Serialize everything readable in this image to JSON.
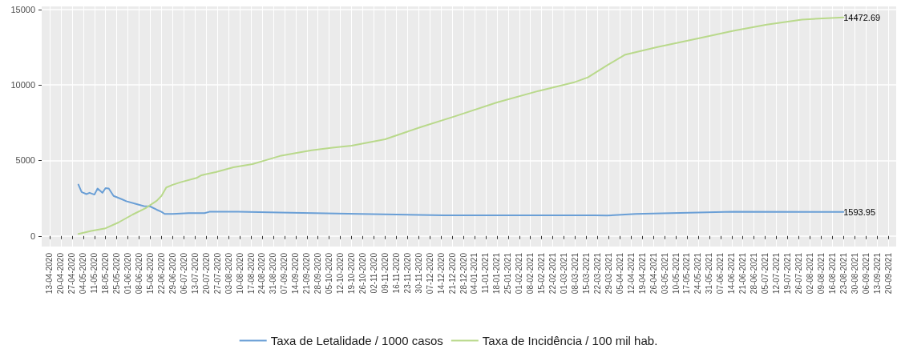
{
  "chart_data": {
    "type": "line",
    "legend": "bottom",
    "grid": true,
    "marker": "none",
    "line_style": "solid",
    "xlim": [
      "2020-04-08",
      "2021-09-25"
    ],
    "xticks": [
      {
        "value": "2020-04-13",
        "label": "13-04-2020"
      },
      {
        "value": "2020-04-20",
        "label": "20-04-2020"
      },
      {
        "value": "2020-04-27",
        "label": "27-04-2020"
      },
      {
        "value": "2020-05-04",
        "label": "04-05-2020"
      },
      {
        "value": "2020-05-11",
        "label": "11-05-2020"
      },
      {
        "value": "2020-05-18",
        "label": "18-05-2020"
      },
      {
        "value": "2020-05-25",
        "label": "25-05-2020"
      },
      {
        "value": "2020-06-01",
        "label": "01-06-2020"
      },
      {
        "value": "2020-06-08",
        "label": "08-06-2020"
      },
      {
        "value": "2020-06-15",
        "label": "15-06-2020"
      },
      {
        "value": "2020-06-22",
        "label": "22-06-2020"
      },
      {
        "value": "2020-06-29",
        "label": "29-06-2020"
      },
      {
        "value": "2020-07-06",
        "label": "06-07-2020"
      },
      {
        "value": "2020-07-13",
        "label": "13-07-2020"
      },
      {
        "value": "2020-07-20",
        "label": "20-07-2020"
      },
      {
        "value": "2020-07-27",
        "label": "27-07-2020"
      },
      {
        "value": "2020-08-03",
        "label": "03-08-2020"
      },
      {
        "value": "2020-08-10",
        "label": "10-08-2020"
      },
      {
        "value": "2020-08-17",
        "label": "17-08-2020"
      },
      {
        "value": "2020-08-24",
        "label": "24-08-2020"
      },
      {
        "value": "2020-08-31",
        "label": "31-08-2020"
      },
      {
        "value": "2020-09-07",
        "label": "07-09-2020"
      },
      {
        "value": "2020-09-14",
        "label": "14-09-2020"
      },
      {
        "value": "2020-09-21",
        "label": "21-09-2020"
      },
      {
        "value": "2020-09-28",
        "label": "28-09-2020"
      },
      {
        "value": "2020-10-05",
        "label": "05-10-2020"
      },
      {
        "value": "2020-10-12",
        "label": "12-10-2020"
      },
      {
        "value": "2020-10-19",
        "label": "19-10-2020"
      },
      {
        "value": "2020-10-26",
        "label": "26-10-2020"
      },
      {
        "value": "2020-11-02",
        "label": "02-11-2020"
      },
      {
        "value": "2020-11-09",
        "label": "09-11-2020"
      },
      {
        "value": "2020-11-16",
        "label": "16-11-2020"
      },
      {
        "value": "2020-11-23",
        "label": "23-11-2020"
      },
      {
        "value": "2020-11-30",
        "label": "30-11-2020"
      },
      {
        "value": "2020-12-07",
        "label": "07-12-2020"
      },
      {
        "value": "2020-12-14",
        "label": "14-12-2020"
      },
      {
        "value": "2020-12-21",
        "label": "21-12-2020"
      },
      {
        "value": "2020-12-28",
        "label": "28-12-2020"
      },
      {
        "value": "2021-01-04",
        "label": "04-01-2021"
      },
      {
        "value": "2021-01-11",
        "label": "11-01-2021"
      },
      {
        "value": "2021-01-18",
        "label": "18-01-2021"
      },
      {
        "value": "2021-01-25",
        "label": "25-01-2021"
      },
      {
        "value": "2021-02-01",
        "label": "01-02-2021"
      },
      {
        "value": "2021-02-08",
        "label": "08-02-2021"
      },
      {
        "value": "2021-02-15",
        "label": "15-02-2021"
      },
      {
        "value": "2021-02-22",
        "label": "22-02-2021"
      },
      {
        "value": "2021-03-01",
        "label": "01-03-2021"
      },
      {
        "value": "2021-03-08",
        "label": "08-03-2021"
      },
      {
        "value": "2021-03-15",
        "label": "15-03-2021"
      },
      {
        "value": "2021-03-22",
        "label": "22-03-2021"
      },
      {
        "value": "2021-03-29",
        "label": "29-03-2021"
      },
      {
        "value": "2021-04-05",
        "label": "05-04-2021"
      },
      {
        "value": "2021-04-12",
        "label": "12-04-2021"
      },
      {
        "value": "2021-04-19",
        "label": "19-04-2021"
      },
      {
        "value": "2021-04-26",
        "label": "26-04-2021"
      },
      {
        "value": "2021-05-03",
        "label": "03-05-2021"
      },
      {
        "value": "2021-05-10",
        "label": "10-05-2021"
      },
      {
        "value": "2021-05-17",
        "label": "17-05-2021"
      },
      {
        "value": "2021-05-24",
        "label": "24-05-2021"
      },
      {
        "value": "2021-05-31",
        "label": "31-05-2021"
      },
      {
        "value": "2021-06-07",
        "label": "07-06-2021"
      },
      {
        "value": "2021-06-14",
        "label": "14-06-2021"
      },
      {
        "value": "2021-06-21",
        "label": "21-06-2021"
      },
      {
        "value": "2021-06-28",
        "label": "28-06-2021"
      },
      {
        "value": "2021-07-05",
        "label": "05-07-2021"
      },
      {
        "value": "2021-07-12",
        "label": "12-07-2021"
      },
      {
        "value": "2021-07-19",
        "label": "19-07-2021"
      },
      {
        "value": "2021-07-26",
        "label": "26-07-2021"
      },
      {
        "value": "2021-08-02",
        "label": "02-08-2021"
      },
      {
        "value": "2021-08-09",
        "label": "09-08-2021"
      },
      {
        "value": "2021-08-16",
        "label": "16-08-2021"
      },
      {
        "value": "2021-08-23",
        "label": "23-08-2021"
      },
      {
        "value": "2021-08-30",
        "label": "30-08-2021"
      },
      {
        "value": "2021-09-06",
        "label": "06-09-2021"
      },
      {
        "value": "2021-09-13",
        "label": "13-09-2021"
      },
      {
        "value": "2021-09-20",
        "label": "20-09-2021"
      }
    ],
    "ylim": [
      -700,
      15200
    ],
    "yticks": [
      0,
      5000,
      10000,
      15000
    ],
    "series": [
      {
        "name": "Taxa de Letalidade / 1000 casos",
        "color": "#6a9fd6",
        "x": [
          "2020-05-01",
          "2020-05-03",
          "2020-05-06",
          "2020-05-08",
          "2020-05-11",
          "2020-05-13",
          "2020-05-16",
          "2020-05-18",
          "2020-05-20",
          "2020-05-23",
          "2020-05-28",
          "2020-05-31",
          "2020-06-06",
          "2020-06-11",
          "2020-06-15",
          "2020-06-19",
          "2020-06-22",
          "2020-06-24",
          "2020-06-29",
          "2020-07-09",
          "2020-07-19",
          "2020-07-22",
          "2020-08-09",
          "2020-09-04",
          "2020-10-24",
          "2020-12-16",
          "2021-03-20",
          "2021-03-28",
          "2021-04-15",
          "2021-05-24",
          "2021-06-15",
          "2021-08-23"
        ],
        "values": [
          3400,
          2910,
          2770,
          2860,
          2740,
          3140,
          2860,
          3170,
          3140,
          2650,
          2440,
          2300,
          2120,
          1980,
          1950,
          1740,
          1600,
          1460,
          1460,
          1510,
          1510,
          1600,
          1600,
          1550,
          1460,
          1370,
          1370,
          1350,
          1460,
          1550,
          1600,
          1593.95
        ],
        "value_labels": [
          null,
          null,
          null,
          null,
          null,
          null,
          null,
          null,
          null,
          null,
          null,
          null,
          null,
          null,
          null,
          null,
          null,
          null,
          null,
          null,
          null,
          null,
          null,
          null,
          null,
          null,
          null,
          null,
          null,
          null,
          null,
          "1593.95"
        ]
      },
      {
        "name": "Taxa de Incidência / 100 mil hab.",
        "color": "#b9d98b",
        "x": [
          "2020-05-01",
          "2020-05-09",
          "2020-05-18",
          "2020-05-26",
          "2020-06-04",
          "2020-06-12",
          "2020-06-19",
          "2020-06-22",
          "2020-06-25",
          "2020-06-29",
          "2020-07-04",
          "2020-07-14",
          "2020-07-17",
          "2020-07-26",
          "2020-08-06",
          "2020-08-18",
          "2020-08-28",
          "2020-09-05",
          "2020-09-14",
          "2020-09-24",
          "2020-10-07",
          "2020-10-19",
          "2020-11-09",
          "2020-12-01",
          "2020-12-23",
          "2021-01-18",
          "2021-02-13",
          "2021-03-07",
          "2021-03-16",
          "2021-03-28",
          "2021-04-08",
          "2021-04-28",
          "2021-05-24",
          "2021-06-15",
          "2021-07-06",
          "2021-07-28",
          "2021-08-23"
        ],
        "values": [
          140,
          330,
          510,
          890,
          1420,
          1840,
          2330,
          2650,
          3210,
          3390,
          3560,
          3840,
          4020,
          4230,
          4550,
          4760,
          5070,
          5320,
          5490,
          5670,
          5840,
          5980,
          6400,
          7200,
          7930,
          8840,
          9600,
          10160,
          10500,
          11300,
          11990,
          12500,
          13080,
          13580,
          13990,
          14330,
          14472.69
        ],
        "value_labels": [
          null,
          null,
          null,
          null,
          null,
          null,
          null,
          null,
          null,
          null,
          null,
          null,
          null,
          null,
          null,
          null,
          null,
          null,
          null,
          null,
          null,
          null,
          null,
          null,
          null,
          null,
          null,
          null,
          null,
          null,
          null,
          null,
          null,
          null,
          null,
          null,
          "14472.69"
        ]
      }
    ]
  }
}
